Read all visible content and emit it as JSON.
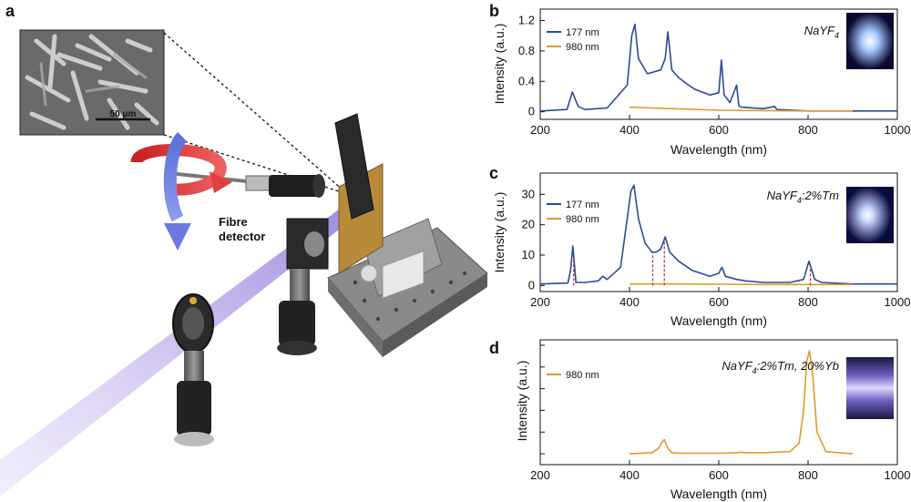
{
  "panels": {
    "a": {
      "letter": "a",
      "sem_scale_label": "50 μm",
      "detector_label_line1": "Fibre",
      "detector_label_line2": "detector"
    }
  },
  "chart_data": [
    {
      "panel": "b",
      "type": "line",
      "xlabel": "Wavelength (nm)",
      "ylabel": "Intensity (a.u.)",
      "xlim": [
        200,
        1000
      ],
      "ylim": [
        -0.1,
        1.35
      ],
      "xticks": [
        200,
        400,
        600,
        800,
        1000
      ],
      "yticks": [
        0,
        0.4,
        0.8,
        1.2
      ],
      "ytick_labels": [
        "0",
        "0.4",
        "0.8",
        "1.2"
      ],
      "sample_label": "NaYF",
      "sample_subscript": "4",
      "sample_suffix": "",
      "legend_position": "top-left",
      "series": [
        {
          "name": "177 nm",
          "color": "#2b4a9a",
          "x": [
            200,
            260,
            272,
            285,
            300,
            350,
            395,
            405,
            412,
            420,
            440,
            470,
            480,
            486,
            495,
            510,
            525,
            545,
            580,
            600,
            606,
            612,
            625,
            640,
            645,
            650,
            700,
            725,
            730,
            800,
            900,
            1000
          ],
          "y": [
            0.01,
            0.03,
            0.26,
            0.07,
            0.03,
            0.05,
            0.35,
            1.0,
            1.15,
            0.7,
            0.5,
            0.55,
            0.7,
            1.05,
            0.55,
            0.45,
            0.38,
            0.3,
            0.22,
            0.25,
            0.68,
            0.22,
            0.12,
            0.35,
            0.08,
            0.06,
            0.04,
            0.07,
            0.03,
            0.01,
            0.01,
            0.01
          ]
        },
        {
          "name": "980 nm",
          "color": "#e09a2a",
          "x": [
            400,
            450,
            500,
            600,
            700,
            800,
            900
          ],
          "y": [
            0.06,
            0.05,
            0.04,
            0.02,
            0.015,
            0.01,
            0.01
          ]
        }
      ]
    },
    {
      "panel": "c",
      "type": "line",
      "xlabel": "Wavelength (nm)",
      "ylabel": "Intensity (a.u.)",
      "xlim": [
        200,
        1000
      ],
      "ylim": [
        -2,
        37
      ],
      "xticks": [
        200,
        400,
        600,
        800,
        1000
      ],
      "yticks": [
        0,
        10,
        20,
        30
      ],
      "ytick_labels": [
        "0",
        "10",
        "20",
        "30"
      ],
      "sample_label": "NaYF",
      "sample_subscript": "4",
      "sample_suffix": ":2%Tm",
      "legend_position": "top-left",
      "series": [
        {
          "name": "177 nm",
          "color": "#2b4a9a",
          "x": [
            200,
            262,
            268,
            273,
            280,
            300,
            330,
            340,
            350,
            380,
            395,
            403,
            410,
            420,
            435,
            450,
            460,
            470,
            480,
            490,
            510,
            540,
            560,
            580,
            600,
            607,
            615,
            640,
            660,
            700,
            760,
            790,
            802,
            815,
            830,
            900,
            1000
          ],
          "y": [
            0.5,
            0.8,
            5,
            13,
            1,
            1,
            1.5,
            3,
            2,
            6,
            22,
            31,
            33,
            22,
            14,
            11,
            11,
            12,
            16,
            11,
            8,
            5,
            4,
            3,
            4,
            6,
            3,
            2,
            1.5,
            1,
            1,
            2,
            8,
            2,
            1,
            0.5,
            0.5
          ]
        },
        {
          "name": "980 nm",
          "color": "#e09a2a",
          "x": [
            400,
            500,
            600,
            700,
            800,
            900
          ],
          "y": [
            0.5,
            0.5,
            0.4,
            0.3,
            0.3,
            0.3
          ]
        }
      ],
      "markers": [
        275,
        452,
        478,
        805
      ]
    },
    {
      "panel": "d",
      "type": "line",
      "xlabel": "Wavelength (nm)",
      "ylabel": "Intensity (a.u.)",
      "xlim": [
        200,
        1000
      ],
      "ylim": [
        -0.1,
        1.05
      ],
      "xticks": [
        200,
        400,
        600,
        800,
        1000
      ],
      "yticks": [
        0,
        0.2,
        0.4,
        0.6,
        0.8,
        1.0
      ],
      "ytick_labels": [
        "",
        "",
        "",
        "",
        "",
        ""
      ],
      "sample_label": "NaYF",
      "sample_subscript": "4",
      "sample_suffix": ":2%Tm, 20%Yb",
      "legend_position": "top-left",
      "series": [
        {
          "name": "980 nm",
          "color": "#e09a2a",
          "x": [
            400,
            450,
            465,
            472,
            478,
            486,
            495,
            520,
            600,
            640,
            650,
            660,
            700,
            760,
            780,
            790,
            797,
            803,
            810,
            820,
            840,
            900
          ],
          "y": [
            0,
            0.01,
            0.05,
            0.1,
            0.13,
            0.05,
            0.01,
            0.005,
            0.005,
            0.01,
            0.015,
            0.01,
            0.01,
            0.02,
            0.1,
            0.4,
            0.85,
            0.95,
            0.75,
            0.2,
            0.02,
            0
          ]
        }
      ]
    }
  ]
}
